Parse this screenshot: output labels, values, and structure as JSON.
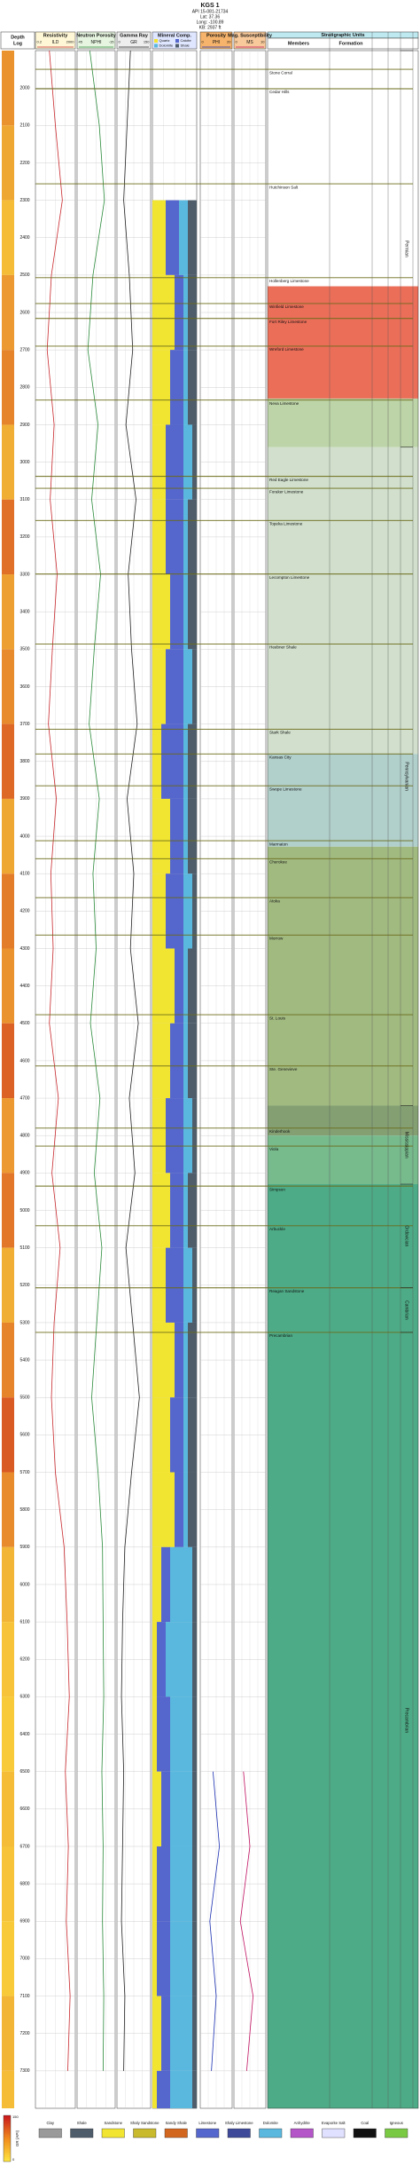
{
  "header": {
    "title": "KGS 1",
    "lines": [
      "API 15-081-21734",
      "Lat: 37.36",
      "Long: -100.89",
      "KB: 2937 ft"
    ]
  },
  "column_headers": {
    "depth": "Depth",
    "depth_sub": "Log",
    "strat": "Stratigraphic Units",
    "members": "Members",
    "formation": "Formation"
  },
  "chart_data": {
    "type": "well-log",
    "ylim": [
      1900,
      7400
    ],
    "yticks": [
      2000,
      2100,
      2200,
      2300,
      2400,
      2500,
      2600,
      2700,
      2800,
      2900,
      3000,
      3100,
      3200,
      3300,
      3400,
      3500,
      3600,
      3700,
      3800,
      3900,
      4000,
      4100,
      4200,
      4300,
      4400,
      4500,
      4600,
      4700,
      4800,
      4900,
      5000,
      5100,
      5200,
      5300,
      5400,
      5500,
      5600,
      5700,
      5800,
      5900,
      6000,
      6100,
      6200,
      6300,
      6400,
      6500,
      6600,
      6700,
      6800,
      6900,
      7000,
      7100,
      7200,
      7300
    ],
    "grid": true,
    "depths": [
      1900,
      2100,
      2300,
      2500,
      2700,
      2900,
      3100,
      3300,
      3500,
      3700,
      3900,
      4100,
      4300,
      4500,
      4700,
      4900,
      5100,
      5300,
      5500,
      5700,
      5900,
      6100,
      6300,
      6500,
      6700,
      6900,
      7100,
      7300
    ],
    "tracks": [
      {
        "title": "Resistivity",
        "type": "line",
        "xlim": [
          0.2,
          2000
        ],
        "log_scale": true,
        "series": [
          {
            "name": "ILD",
            "color": "#c8282d",
            "values": [
              5,
              20,
              100,
              8,
              3,
              15,
              6,
              30,
              10,
              4,
              25,
              7,
              12,
              5,
              40,
              9,
              60,
              15,
              8,
              20,
              150,
              300,
              500,
              200,
              400,
              250,
              600,
              350
            ]
          }
        ]
      },
      {
        "title": "Neutron Porosity",
        "type": "line",
        "xlim": [
          45,
          -15
        ],
        "series": [
          {
            "name": "NPHI",
            "color": "#2a8a3a",
            "values": [
              25,
              10,
              2,
              20,
              28,
              12,
              22,
              8,
              18,
              26,
              10,
              20,
              15,
              24,
              9,
              18,
              6,
              14,
              22,
              12,
              5,
              4,
              3,
              6,
              4,
              5,
              3,
              4
            ]
          }
        ]
      },
      {
        "title": "Gamma Ray",
        "type": "line",
        "xlim": [
          0,
          150
        ],
        "series": [
          {
            "name": "GR",
            "color": "#222222",
            "values": [
              60,
              45,
              30,
              55,
              70,
              40,
              85,
              50,
              65,
              90,
              45,
              75,
              60,
              95,
              55,
              80,
              40,
              70,
              100,
              65,
              35,
              25,
              20,
              30,
              25,
              20,
              35,
              30
            ]
          }
        ]
      },
      {
        "title": "Mineral Comp.",
        "type": "stacked",
        "xlim": [
          0,
          1
        ],
        "series": [
          {
            "name": "Quartz",
            "color": "#f2e531",
            "values": [
              null,
              null,
              0.3,
              0.5,
              0.4,
              0.3,
              0.3,
              0.4,
              0.3,
              0.2,
              0.4,
              0.3,
              0.5,
              0.4,
              0.3,
              0.4,
              0.3,
              0.5,
              0.4,
              0.5,
              0.2,
              0.1,
              0.1,
              0.2,
              0.1,
              0.1,
              0.2,
              0.1
            ]
          },
          {
            "name": "Calcite",
            "color": "#5566cc",
            "values": [
              null,
              null,
              0.3,
              0.2,
              0.3,
              0.4,
              0.4,
              0.3,
              0.4,
              0.5,
              0.3,
              0.4,
              0.2,
              0.3,
              0.4,
              0.3,
              0.4,
              0.2,
              0.3,
              0.2,
              0.2,
              0.2,
              0.3,
              0.2,
              0.3,
              0.3,
              0.2,
              0.3
            ]
          },
          {
            "name": "Dolomite",
            "color": "#5ab8de",
            "values": [
              null,
              null,
              0.2,
              0.1,
              0.1,
              0.2,
              0.1,
              0.1,
              0.2,
              0.1,
              0.1,
              0.2,
              0.1,
              0.1,
              0.2,
              0.1,
              0.2,
              0.1,
              0.1,
              0.1,
              0.5,
              0.6,
              0.5,
              0.5,
              0.5,
              0.5,
              0.5,
              0.5
            ]
          },
          {
            "name": "Shale",
            "color": "#4f5d6b",
            "values": [
              null,
              null,
              0.2,
              0.2,
              0.2,
              0.1,
              0.2,
              0.2,
              0.1,
              0.2,
              0.2,
              0.1,
              0.2,
              0.2,
              0.1,
              0.2,
              0.1,
              0.2,
              0.2,
              0.2,
              0.1,
              0.1,
              0.1,
              0.1,
              0.1,
              0.1,
              0.1,
              0.1
            ]
          }
        ]
      },
      {
        "title": "Porosity",
        "type": "line",
        "xlim": [
          0,
          20
        ],
        "series": [
          {
            "name": "PHI",
            "color": "#1a2fb0",
            "values": [
              null,
              null,
              null,
              null,
              null,
              null,
              null,
              null,
              null,
              null,
              null,
              null,
              null,
              null,
              null,
              null,
              null,
              null,
              null,
              null,
              null,
              null,
              null,
              8,
              12,
              6,
              10,
              7
            ]
          }
        ]
      },
      {
        "title": "Mag. Susceptibility",
        "type": "line",
        "xlim": [
          0,
          10
        ],
        "series": [
          {
            "name": "MS",
            "color": "#c01060",
            "values": [
              null,
              null,
              null,
              null,
              null,
              null,
              null,
              null,
              null,
              null,
              null,
              null,
              null,
              null,
              null,
              null,
              null,
              null,
              null,
              null,
              null,
              null,
              null,
              3,
              5,
              2,
              6,
              4
            ]
          }
        ]
      }
    ],
    "colorbar_title": "GR (API)"
  },
  "strat": {
    "zones": [
      {
        "top": 2530,
        "base": 2830,
        "color": "#e8553c"
      },
      {
        "top": 2830,
        "base": 2960,
        "color": "#b0cc98"
      },
      {
        "top": 2960,
        "base": 3780,
        "color": "#c9d9c3"
      },
      {
        "top": 3780,
        "base": 4028,
        "color": "#a3c7c2"
      },
      {
        "top": 4028,
        "base": 4720,
        "color": "#90ae6a"
      },
      {
        "top": 4720,
        "base": 4800,
        "color": "#6f8f5a"
      },
      {
        "top": 4800,
        "base": 4930,
        "color": "#5fae78"
      },
      {
        "top": 4930,
        "base": 7400,
        "color": "#2e9c72"
      }
    ],
    "members": [
      {
        "name": "Stone Corral",
        "depth": 1950
      },
      {
        "name": "Cedar Hills",
        "depth": 2002
      },
      {
        "name": "Hutchinson Salt",
        "depth": 2256
      },
      {
        "name": "Hollenberg Limestone",
        "depth": 2507
      },
      {
        "name": "Winfield Limestone",
        "depth": 2576
      },
      {
        "name": "Fort Riley Limestone",
        "depth": 2616
      },
      {
        "name": "Wreford Limestone",
        "depth": 2690
      },
      {
        "name": "Neva Limestone",
        "depth": 2834
      },
      {
        "name": "Red Eagle Limestone",
        "depth": 3038
      },
      {
        "name": "Foraker Limestone",
        "depth": 3070
      },
      {
        "name": "Topeka Limestone",
        "depth": 3156
      },
      {
        "name": "Lecompton Limestone",
        "depth": 3299
      },
      {
        "name": "Heebner Shale",
        "depth": 3486
      },
      {
        "name": "Stark Shale",
        "depth": 3714
      },
      {
        "name": "Kansas City",
        "depth": 3780
      },
      {
        "name": "Swope Limestone",
        "depth": 3865
      },
      {
        "name": "Marmaton",
        "depth": 4012
      },
      {
        "name": "Cherokee",
        "depth": 4060
      },
      {
        "name": "Atoka",
        "depth": 4164
      },
      {
        "name": "Morrow",
        "depth": 4264
      },
      {
        "name": "St. Louis",
        "depth": 4477
      },
      {
        "name": "Ste. Genevieve",
        "depth": 4614
      },
      {
        "name": "Kinderhook",
        "depth": 4780
      },
      {
        "name": "Viola",
        "depth": 4828
      },
      {
        "name": "Simpson",
        "depth": 4935
      },
      {
        "name": "Arbuckle",
        "depth": 5041
      },
      {
        "name": "Reagan Sandstone",
        "depth": 5207
      },
      {
        "name": "Precambrian",
        "depth": 5326
      }
    ],
    "systems": [
      {
        "name": "Permian",
        "top": 1900,
        "base": 2960
      },
      {
        "name": "Pennsylvanian",
        "top": 2960,
        "base": 4720
      },
      {
        "name": "Mississippian",
        "top": 4720,
        "base": 4930
      },
      {
        "name": "Ordovician",
        "top": 4930,
        "base": 5207
      },
      {
        "name": "Cambrian",
        "top": 5207,
        "base": 5326
      },
      {
        "name": "Precambrian",
        "top": 5326,
        "base": 7400
      }
    ]
  },
  "legend": [
    {
      "name": "Clay",
      "color": "#9a9a9a"
    },
    {
      "name": "Shale",
      "color": "#4f5d6b"
    },
    {
      "name": "Sandstone",
      "color": "#f2e531"
    },
    {
      "name": "Shaly Sandstone",
      "color": "#c9b92c"
    },
    {
      "name": "Sandy Shale",
      "color": "#d2661f"
    },
    {
      "name": "Limestone",
      "color": "#5566cc"
    },
    {
      "name": "Shaly Limestone",
      "color": "#3e4a99"
    },
    {
      "name": "Dolomite",
      "color": "#5ab8de"
    },
    {
      "name": "Anhydrite",
      "color": "#b455c8"
    },
    {
      "name": "Evaporite Salt",
      "color": "#e0e0ff"
    },
    {
      "name": "Coal",
      "color": "#111111"
    },
    {
      "name": "Igneous",
      "color": "#7ac943"
    }
  ]
}
